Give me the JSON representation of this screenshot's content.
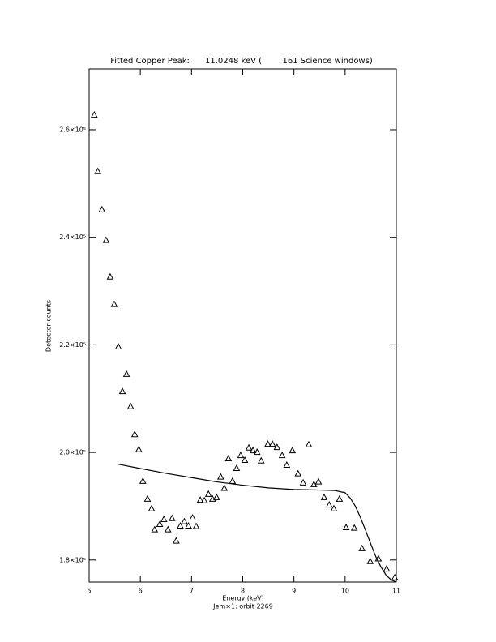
{
  "chart_data": {
    "type": "scatter",
    "title": "Fitted Copper Peak:      11.0248 keV (        161 Science windows)",
    "x_label": "Energy (keV)",
    "subtitle": "Jem×1: orbit 2269",
    "y_label": "Detector counts",
    "xlim": [
      5,
      11
    ],
    "ylim": [
      175900,
      271300
    ],
    "xticks": [
      5,
      6,
      7,
      8,
      9,
      10,
      11
    ],
    "yticks": [
      {
        "value": 180000,
        "label": "1.8×10⁵"
      },
      {
        "value": 200000,
        "label": "2.0×10⁵"
      },
      {
        "value": 220000,
        "label": "2.2×10⁵"
      },
      {
        "value": 240000,
        "label": "2.4×10⁵"
      },
      {
        "value": 260000,
        "label": "2.6×10⁵"
      }
    ],
    "series": [
      {
        "x": [
          5.1,
          5.17,
          5.25,
          5.33,
          5.41,
          5.49,
          5.57,
          5.65,
          5.73,
          5.81,
          5.89,
          5.97,
          6.05,
          6.14,
          6.22,
          6.28,
          6.38,
          6.46,
          6.54,
          6.62,
          6.7,
          6.78,
          6.86,
          6.94,
          7.02,
          7.09,
          7.17,
          7.25,
          7.33,
          7.41,
          7.49,
          7.57,
          7.64,
          7.72,
          7.8,
          7.88,
          7.96,
          8.04,
          8.12,
          8.2,
          8.28,
          8.36,
          8.49,
          8.58,
          8.67,
          8.77,
          8.86,
          8.97,
          9.08,
          9.18,
          9.29,
          9.39,
          9.48,
          9.59,
          9.69,
          9.78,
          9.89,
          10.02,
          10.18,
          10.33,
          10.49,
          10.65,
          10.81,
          10.97
        ],
        "values": [
          262700,
          252200,
          245100,
          239400,
          232600,
          227500,
          219600,
          211300,
          214500,
          208500,
          203300,
          200500,
          194600,
          191300,
          189500,
          185600,
          186600,
          187500,
          185600,
          187700,
          183500,
          186300,
          187100,
          186300,
          187800,
          186200,
          191100,
          191000,
          192200,
          191300,
          191600,
          195400,
          193300,
          198800,
          194600,
          197000,
          199400,
          198500,
          200800,
          200300,
          200000,
          198400,
          201500,
          201500,
          200900,
          199400,
          197600,
          200300,
          196000,
          194300,
          201400,
          194000,
          194500,
          191600,
          190200,
          189500,
          191300,
          186000,
          185900,
          182100,
          179700,
          180200,
          178300,
          176700
        ],
        "color": "#000000"
      },
      {
        "type": "line",
        "x": [
          5.57,
          6.0,
          6.5,
          7.0,
          7.5,
          8.0,
          8.5,
          9.0,
          9.5,
          9.8,
          10.0,
          10.1,
          10.2,
          10.3,
          10.4,
          10.5,
          10.6,
          10.7,
          10.8,
          10.9,
          11.0
        ],
        "values": [
          197800,
          197000,
          196100,
          195300,
          194500,
          193900,
          193400,
          193100,
          193000,
          192900,
          192500,
          191500,
          190000,
          187900,
          185500,
          183000,
          180600,
          178700,
          177200,
          176300,
          175900
        ],
        "color": "#000000"
      }
    ]
  }
}
